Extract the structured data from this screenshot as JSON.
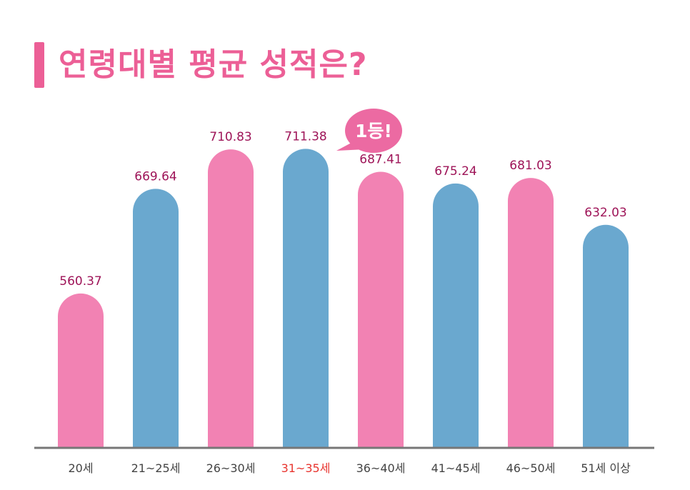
{
  "title": "연령대별 평균 성적은?",
  "colors": {
    "title": "#ec5f96",
    "title_bar": "#ec5f96",
    "pink": "#f282b3",
    "blue": "#6aa8cf",
    "value_label": "#9e1458",
    "tick_label": "#444444",
    "highlight_tick": "#e8342e",
    "axis": "#777777",
    "badge_fill": "#ec6aa2",
    "badge_text": "#ffffff"
  },
  "chart_data": {
    "type": "bar",
    "categories": [
      "20세",
      "21~25세",
      "26~30세",
      "31~35세",
      "36~40세",
      "41~45세",
      "46~50세",
      "51세 이상"
    ],
    "values": [
      560.37,
      669.64,
      710.83,
      711.38,
      687.41,
      675.24,
      681.03,
      632.03
    ],
    "value_labels": [
      "560.37",
      "669.64",
      "710.83",
      "711.38",
      "687.41",
      "675.24",
      "681.03",
      "632.03"
    ],
    "bar_colors": [
      "pink",
      "blue",
      "pink",
      "blue",
      "pink",
      "blue",
      "pink",
      "blue"
    ],
    "highlight_index": 3,
    "highlight_label": "1등!",
    "ylim": [
      400,
      740
    ],
    "grid": false,
    "legend": "none",
    "xlabel": "",
    "ylabel": ""
  }
}
